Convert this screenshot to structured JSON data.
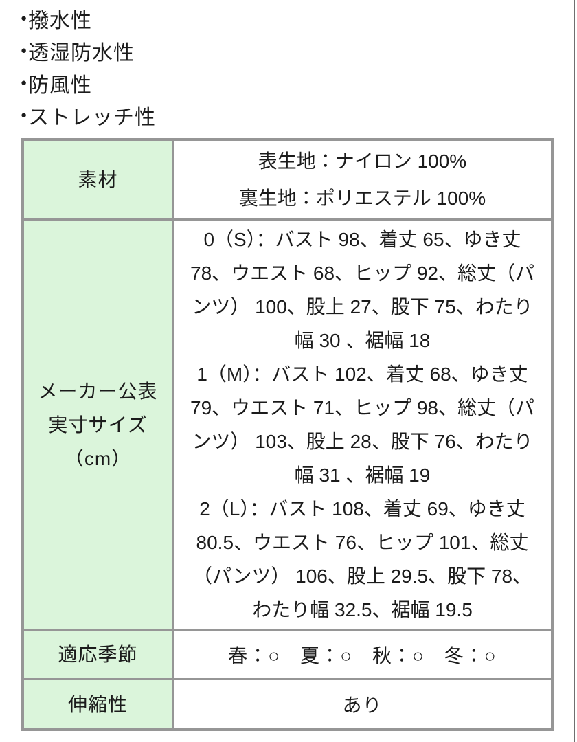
{
  "features": {
    "bullet": "●",
    "items": [
      "撥水性",
      "透湿防水性",
      "防風性",
      "ストレッチ性"
    ]
  },
  "spec_table": {
    "material": {
      "label": "素材",
      "lines": [
        "表生地：ナイロン 100%",
        "裏生地：ポリエステル 100%"
      ]
    },
    "size": {
      "label_lines": [
        "メーカー公表",
        "実寸サイズ",
        "（cm）"
      ],
      "entries": [
        "0（S）：バスト 98、着丈 65、ゆき丈 78、ウエスト 68、ヒップ 92、総丈（パンツ） 100、股上 27、股下 75、わたり幅 30 、裾幅 18",
        "1（M）：バスト 102、着丈 68、ゆき丈 79、ウエスト 71、ヒップ 98、総丈（パンツ） 103、股上 28、股下 76、わたり幅 31 、裾幅 19",
        "2（L）：バスト 108、着丈 69、ゆき丈 80.5、ウエスト 76、ヒップ 101、総丈（パンツ） 106、股上 29.5、股下 78、わたり幅 32.5、裾幅 19.5"
      ]
    },
    "season": {
      "label": "適応季節",
      "value": "春：○　夏：○　秋：○　冬：○"
    },
    "stretch": {
      "label": "伸縮性",
      "value": "あり"
    }
  },
  "colors": {
    "header_cell_bg": "#dbf5db",
    "table_border": "#969696",
    "text": "#1b1b1b"
  }
}
